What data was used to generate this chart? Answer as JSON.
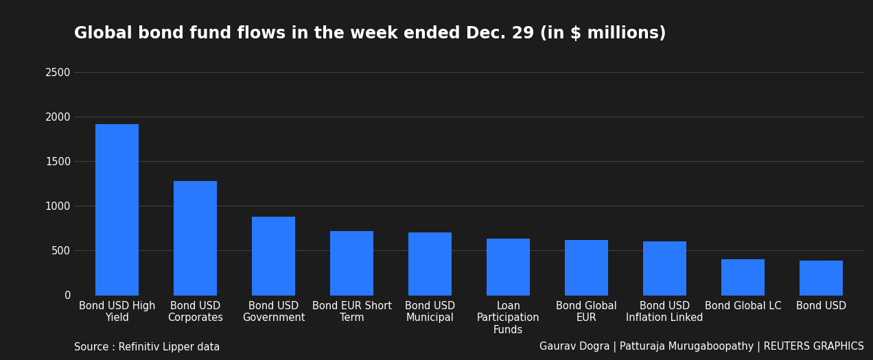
{
  "title": "Global bond fund flows in the week ended Dec. 29 (in $ millions)",
  "categories": [
    "Bond USD High\nYield",
    "Bond USD\nCorporates",
    "Bond USD\nGovernment",
    "Bond EUR Short\nTerm",
    "Bond USD\nMunicipal",
    "Loan\nParticipation\nFunds",
    "Bond Global\nEUR",
    "Bond USD\nInflation Linked",
    "Bond Global LC",
    "Bond USD"
  ],
  "values": [
    1920,
    1280,
    880,
    715,
    700,
    630,
    615,
    605,
    400,
    385
  ],
  "bar_color": "#2979FF",
  "background_color": "#1c1c1c",
  "text_color": "#ffffff",
  "grid_color": "#444444",
  "ylim": [
    0,
    2500
  ],
  "yticks": [
    0,
    500,
    1000,
    1500,
    2000,
    2500
  ],
  "source_text": "Source : Refinitiv Lipper data",
  "credit_text": "Gaurav Dogra | Patturaja Murugaboopathy | REUTERS GRAPHICS",
  "title_fontsize": 17,
  "tick_fontsize": 10.5,
  "footer_fontsize": 10.5
}
